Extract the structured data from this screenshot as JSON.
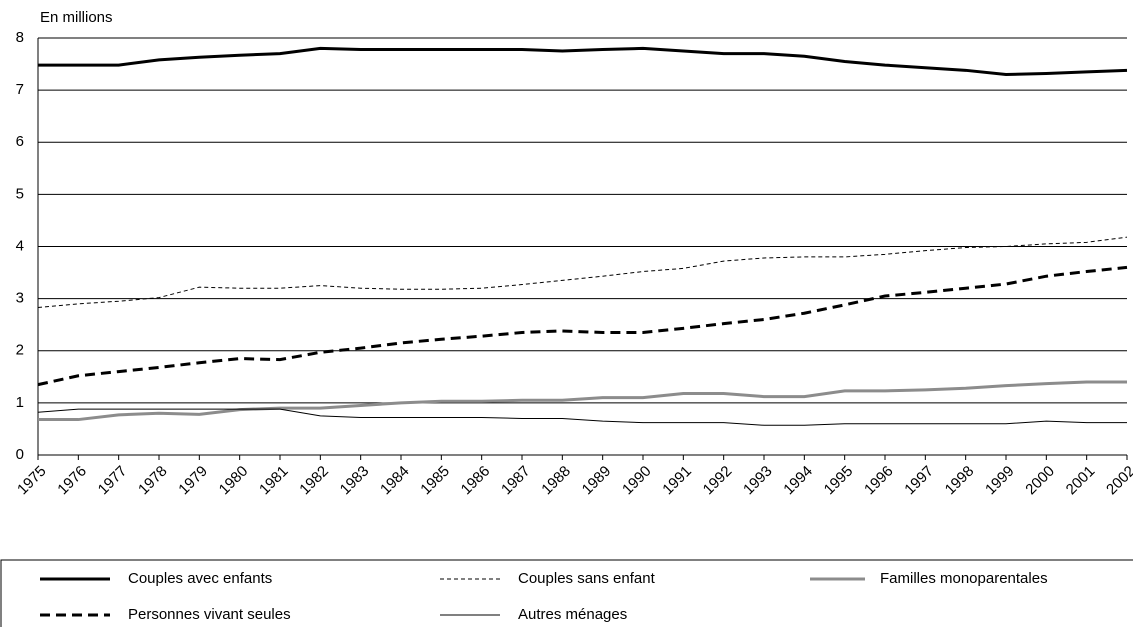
{
  "chart_data": {
    "type": "line",
    "y_axis_label": "En millions",
    "categories": [
      "1975",
      "1976",
      "1977",
      "1978",
      "1979",
      "1980",
      "1981",
      "1982",
      "1983",
      "1984",
      "1985",
      "1986",
      "1987",
      "1988",
      "1989",
      "1990",
      "1991",
      "1992",
      "1993",
      "1994",
      "1995",
      "1996",
      "1997",
      "1998",
      "1999",
      "2000",
      "2001",
      "2002"
    ],
    "ylim": [
      0,
      8
    ],
    "yticks": [
      0,
      1,
      2,
      3,
      4,
      5,
      6,
      7,
      8
    ],
    "grid": true,
    "series": [
      {
        "name": "Couples avec enfants",
        "color": "#000000",
        "width": 3,
        "dash": "solid",
        "values": [
          7.48,
          7.48,
          7.48,
          7.58,
          7.63,
          7.67,
          7.7,
          7.8,
          7.78,
          7.78,
          7.78,
          7.78,
          7.78,
          7.75,
          7.78,
          7.8,
          7.75,
          7.7,
          7.7,
          7.65,
          7.55,
          7.48,
          7.43,
          7.38,
          7.3,
          7.32,
          7.35,
          7.38
        ]
      },
      {
        "name": "Couples sans enfant",
        "color": "#000000",
        "width": 1,
        "dash": "dashed",
        "values": [
          2.83,
          2.9,
          2.95,
          3.02,
          3.22,
          3.2,
          3.2,
          3.25,
          3.2,
          3.18,
          3.18,
          3.2,
          3.27,
          3.35,
          3.43,
          3.52,
          3.58,
          3.72,
          3.78,
          3.8,
          3.8,
          3.85,
          3.92,
          3.98,
          4.0,
          4.05,
          4.08,
          4.18
        ]
      },
      {
        "name": "Familles monoparentales",
        "color": "#8c8c8c",
        "width": 3,
        "dash": "solid",
        "values": [
          0.68,
          0.68,
          0.77,
          0.8,
          0.78,
          0.87,
          0.9,
          0.9,
          0.95,
          1.0,
          1.03,
          1.03,
          1.05,
          1.05,
          1.1,
          1.1,
          1.18,
          1.18,
          1.12,
          1.12,
          1.23,
          1.23,
          1.25,
          1.28,
          1.33,
          1.37,
          1.4,
          1.4
        ]
      },
      {
        "name": "Personnes vivant seules",
        "color": "#000000",
        "width": 3,
        "dash": "dashed",
        "values": [
          1.35,
          1.52,
          1.6,
          1.68,
          1.77,
          1.85,
          1.83,
          1.97,
          2.05,
          2.15,
          2.22,
          2.28,
          2.35,
          2.38,
          2.35,
          2.35,
          2.43,
          2.52,
          2.6,
          2.72,
          2.88,
          3.05,
          3.12,
          3.2,
          3.28,
          3.43,
          3.52,
          3.6
        ]
      },
      {
        "name": "Autres ménages",
        "color": "#000000",
        "width": 1,
        "dash": "solid",
        "values": [
          0.82,
          0.88,
          0.88,
          0.88,
          0.88,
          0.88,
          0.88,
          0.75,
          0.72,
          0.72,
          0.72,
          0.72,
          0.7,
          0.7,
          0.65,
          0.62,
          0.62,
          0.62,
          0.57,
          0.57,
          0.6,
          0.6,
          0.6,
          0.6,
          0.6,
          0.65,
          0.62,
          0.62
        ]
      }
    ]
  }
}
